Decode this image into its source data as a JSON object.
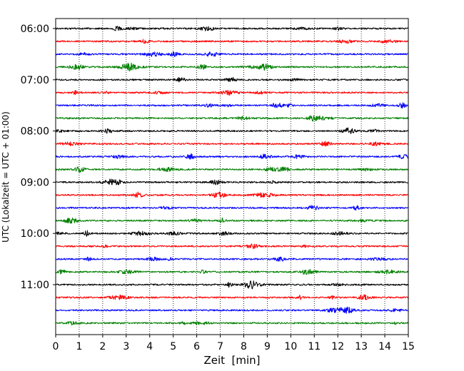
{
  "chart_data": {
    "type": "line",
    "chart_kind": "helicorder",
    "xlabel": "Zeit  [min]",
    "ylabel": "UTC (Lokalzeit = UTC + 01:00)",
    "xlim": [
      0,
      15
    ],
    "x_ticks": [
      "0",
      "1",
      "2",
      "3",
      "4",
      "5",
      "6",
      "7",
      "8",
      "9",
      "10",
      "11",
      "12",
      "13",
      "14",
      "15"
    ],
    "y_tick_labels": [
      "06:00",
      "07:00",
      "08:00",
      "09:00",
      "10:00",
      "11:00"
    ],
    "y_ticks_row_index": [
      0,
      4,
      8,
      12,
      16,
      20
    ],
    "row_minutes": 15,
    "start_time_utc": "06:00",
    "row_count": 24,
    "trace_colors": [
      "#000000",
      "#ff0000",
      "#0000ff",
      "#008000"
    ],
    "vertical_grid": "dotted",
    "legend": "none"
  }
}
